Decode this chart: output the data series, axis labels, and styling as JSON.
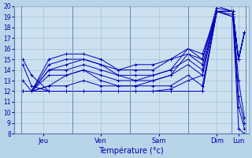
{
  "background_color": "#b8d4e8",
  "plot_bg_color": "#cce0f0",
  "grid_color": "#99bbcc",
  "line_color": "#0000bb",
  "title": "Température (°c)",
  "x_day_labels": [
    "Jeu",
    "Ven",
    "Sam",
    "Dim",
    "Lun"
  ],
  "x_day_tick_pos": [
    1.0,
    3.0,
    5.0,
    7.0,
    7.75
  ],
  "x_separator_positions": [
    0.25,
    2.0,
    4.0,
    6.0,
    7.5,
    8.0
  ],
  "ylim": [
    8,
    20
  ],
  "yticks": [
    8,
    9,
    10,
    11,
    12,
    13,
    14,
    15,
    16,
    17,
    18,
    19,
    20
  ],
  "xlim": [
    0.0,
    8.1
  ],
  "series": [
    {
      "x": [
        0.3,
        0.6,
        1.2,
        1.8,
        2.4,
        3.0,
        3.6,
        4.2,
        4.8,
        5.4,
        6.0,
        6.5,
        7.0,
        7.55,
        7.75,
        7.95
      ],
      "y": [
        15.0,
        13.5,
        12.0,
        12.0,
        12.0,
        12.0,
        12.0,
        12.0,
        12.0,
        12.0,
        12.0,
        12.0,
        19.5,
        19.0,
        8.5,
        8.0
      ]
    },
    {
      "x": [
        0.3,
        0.6,
        1.2,
        1.8,
        2.4,
        3.0,
        3.6,
        4.2,
        4.8,
        5.4,
        6.0,
        6.5,
        7.0,
        7.55,
        7.75,
        7.95
      ],
      "y": [
        14.5,
        12.5,
        12.0,
        12.0,
        12.0,
        12.0,
        12.0,
        12.0,
        12.0,
        12.2,
        13.0,
        13.5,
        19.8,
        19.5,
        10.5,
        8.5
      ]
    },
    {
      "x": [
        0.3,
        0.6,
        1.2,
        1.8,
        2.4,
        3.0,
        3.6,
        4.2,
        4.8,
        5.4,
        6.0,
        6.5,
        7.0,
        7.55,
        7.75,
        7.95
      ],
      "y": [
        13.0,
        12.0,
        12.5,
        13.5,
        14.0,
        13.0,
        12.5,
        12.5,
        13.0,
        13.5,
        15.5,
        15.0,
        20.0,
        19.5,
        11.5,
        9.0
      ]
    },
    {
      "x": [
        0.3,
        0.6,
        1.2,
        1.8,
        2.4,
        3.0,
        3.6,
        4.2,
        4.8,
        5.4,
        6.0,
        6.5,
        7.0,
        7.55,
        7.75,
        7.95
      ],
      "y": [
        12.0,
        12.0,
        14.0,
        14.5,
        15.0,
        14.5,
        13.5,
        13.0,
        13.5,
        14.0,
        16.0,
        15.5,
        19.5,
        19.2,
        13.0,
        9.5
      ]
    },
    {
      "x": [
        0.3,
        0.6,
        1.2,
        1.8,
        2.4,
        3.0,
        3.6,
        4.2,
        4.8,
        5.4,
        6.0,
        6.5,
        7.0,
        7.55,
        7.75,
        7.95
      ],
      "y": [
        12.0,
        12.0,
        15.0,
        15.5,
        15.5,
        15.0,
        14.0,
        14.5,
        14.5,
        15.0,
        16.0,
        15.0,
        19.5,
        19.0,
        15.0,
        17.5
      ]
    },
    {
      "x": [
        0.3,
        0.6,
        1.2,
        1.8,
        2.4,
        3.0,
        3.6,
        4.2,
        4.8,
        5.4,
        6.0,
        6.5,
        7.0,
        7.55,
        7.75,
        7.95
      ],
      "y": [
        12.0,
        12.0,
        14.5,
        15.0,
        15.0,
        14.5,
        14.0,
        14.0,
        14.0,
        15.0,
        15.5,
        14.5,
        19.5,
        19.5,
        15.0,
        17.5
      ]
    },
    {
      "x": [
        0.3,
        0.6,
        1.2,
        1.8,
        2.4,
        3.0,
        3.6,
        4.2,
        4.8,
        5.4,
        6.0,
        6.5,
        7.0,
        7.55,
        7.75,
        7.95
      ],
      "y": [
        12.0,
        12.0,
        14.0,
        14.0,
        14.5,
        14.0,
        13.5,
        13.5,
        13.5,
        14.0,
        15.0,
        14.0,
        19.5,
        19.5,
        15.0,
        17.5
      ]
    },
    {
      "x": [
        0.3,
        0.6,
        1.2,
        1.8,
        2.4,
        3.0,
        3.6,
        4.2,
        4.8,
        5.4,
        6.0,
        6.5,
        7.0,
        7.55,
        7.75,
        7.95
      ],
      "y": [
        12.0,
        12.0,
        13.5,
        13.5,
        14.0,
        13.5,
        13.0,
        13.0,
        13.0,
        13.5,
        14.5,
        13.5,
        19.5,
        19.5,
        15.0,
        17.5
      ]
    },
    {
      "x": [
        0.3,
        0.6,
        1.2,
        1.8,
        2.4,
        3.0,
        3.6,
        4.2,
        4.8,
        5.4,
        6.0,
        6.5,
        7.0,
        7.55,
        7.75,
        7.95
      ],
      "y": [
        12.0,
        12.0,
        12.5,
        12.5,
        13.0,
        12.5,
        12.5,
        12.5,
        12.5,
        12.5,
        13.5,
        12.5,
        19.5,
        19.5,
        15.0,
        17.5
      ]
    },
    {
      "x": [
        0.3,
        0.6,
        1.2,
        1.8,
        2.4,
        3.0,
        3.6,
        4.2,
        4.8,
        5.4,
        6.0,
        6.5,
        7.0,
        7.55,
        7.75,
        7.95
      ],
      "y": [
        12.0,
        12.0,
        12.0,
        12.0,
        12.0,
        12.0,
        12.0,
        12.0,
        12.0,
        12.0,
        12.0,
        12.0,
        19.5,
        19.5,
        15.0,
        17.5
      ]
    }
  ]
}
